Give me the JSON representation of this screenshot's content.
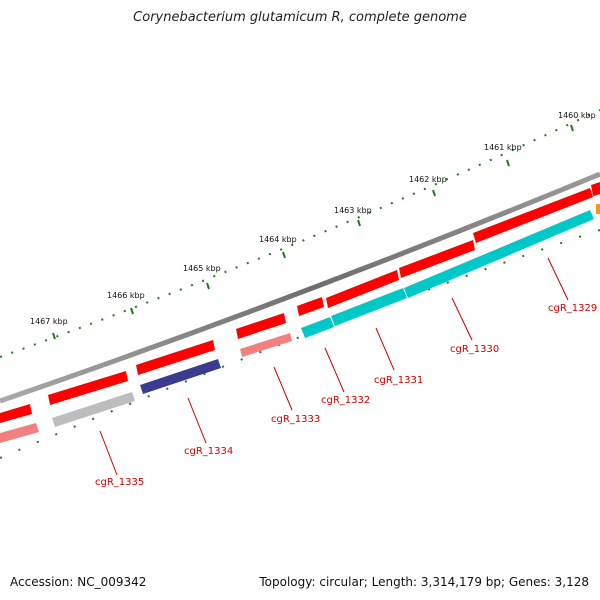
{
  "title": "Corynebacterium glutamicum R, complete genome",
  "accession_text": "Accession: NC_009342",
  "summary_text": "Topology: circular; Length: 3,314,179 bp; Genes: 3,128",
  "tick_labels": [
    "1460 kbp",
    "1461 kbp",
    "1462 kbp",
    "1463 kbp",
    "1464 kbp",
    "1465 kbp",
    "1466 kbp",
    "1467 kbp"
  ],
  "gene_labels": [
    "cgR_1329",
    "cgR_1330",
    "cgR_1331",
    "cgR_1332",
    "cgR_1333",
    "cgR_1334",
    "cgR_1335"
  ],
  "colors": {
    "backbone": "#7a7a7a",
    "cds": "#ff0000",
    "cds_pale": "#f28080",
    "cyan": "#00c8c8",
    "grey_feature": "#bdbdbd",
    "purple_feature": "#3b3b8f",
    "orange_feature": "#ff9900",
    "tick": "#1f7a1f",
    "label": "#cc0000"
  }
}
